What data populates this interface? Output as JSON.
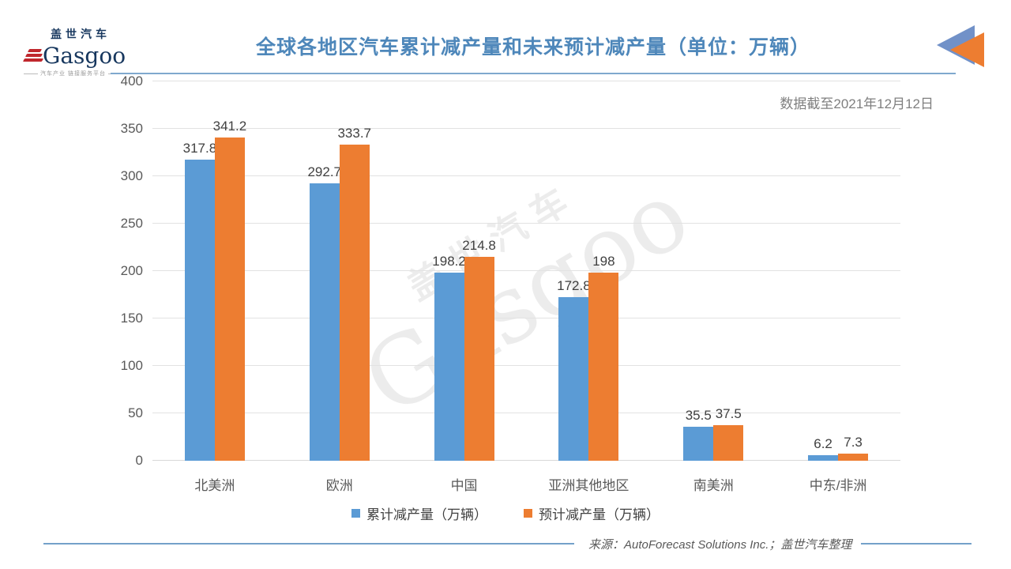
{
  "header": {
    "logo": {
      "cn": "盖世汽车",
      "en": "Gasgoo",
      "tagline": "汽车产业 链接服务平台"
    },
    "title": "全球各地区汽车累计减产量和未来预计减产量（单位：万辆）"
  },
  "watermark": {
    "cn": "盖世汽车",
    "en": "Gasgoo"
  },
  "chart_data": {
    "type": "bar",
    "title": "全球各地区汽车累计减产量和未来预计减产量（单位：万辆）",
    "note": "数据截至2021年12月12日",
    "categories": [
      "北美洲",
      "欧洲",
      "中国",
      "亚洲其他地区",
      "南美洲",
      "中东/非洲"
    ],
    "series": [
      {
        "name": "累计减产量（万辆）",
        "color": "#5B9BD5",
        "values": [
          317.8,
          292.7,
          198.2,
          172.8,
          35.5,
          6.2
        ]
      },
      {
        "name": "预计减产量（万辆）",
        "color": "#ED7D31",
        "values": [
          341.2,
          333.7,
          214.8,
          198,
          37.5,
          7.3
        ]
      }
    ],
    "ylim": [
      0,
      400
    ],
    "yticks": [
      0,
      50,
      100,
      150,
      200,
      250,
      300,
      350,
      400
    ],
    "grid": true,
    "legend_position": "bottom",
    "data_labels": true
  },
  "footer": {
    "source": "来源：AutoForecast Solutions Inc.；盖世汽车整理"
  },
  "colors": {
    "bar_blue": "#5B9BD5",
    "bar_orange": "#ED7D31",
    "title_blue": "#4E87BA",
    "title_underline": "#7FA8CE",
    "grid_gray": "#E2E2E2",
    "axis_text": "#595959",
    "data_label_text": "#404040",
    "note_gray": "#7F7F7F",
    "footer_line_blue": "#74A1C9",
    "logo_navy": "#17375E",
    "logo_red": "#C0272D",
    "corner_icon_blue": "#7191C8",
    "corner_icon_orange": "#ED7D31",
    "watermark_gray": "#ECECEC"
  }
}
